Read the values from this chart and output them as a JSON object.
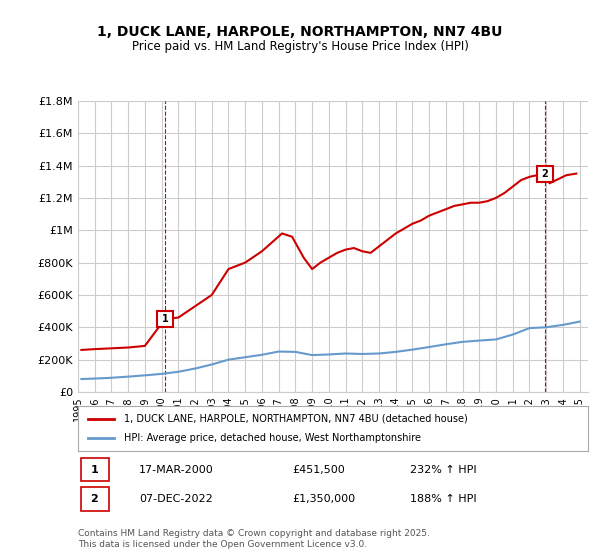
{
  "title": "1, DUCK LANE, HARPOLE, NORTHAMPTON, NN7 4BU",
  "subtitle": "Price paid vs. HM Land Registry's House Price Index (HPI)",
  "legend_label_red": "1, DUCK LANE, HARPOLE, NORTHAMPTON, NN7 4BU (detached house)",
  "legend_label_blue": "HPI: Average price, detached house, West Northamptonshire",
  "annotation1_label": "1",
  "annotation1_date": "17-MAR-2000",
  "annotation1_price": "£451,500",
  "annotation1_hpi": "232% ↑ HPI",
  "annotation2_label": "2",
  "annotation2_date": "07-DEC-2022",
  "annotation2_price": "£1,350,000",
  "annotation2_hpi": "188% ↑ HPI",
  "footer": "Contains HM Land Registry data © Crown copyright and database right 2025.\nThis data is licensed under the Open Government Licence v3.0.",
  "red_color": "#cc0000",
  "blue_color": "#6699cc",
  "ylim": [
    0,
    1800000
  ],
  "yticks": [
    0,
    200000,
    400000,
    600000,
    800000,
    1000000,
    1200000,
    1400000,
    1600000,
    1800000
  ],
  "ytick_labels": [
    "£0",
    "£200K",
    "£400K",
    "£600K",
    "£800K",
    "£1M",
    "£1.2M",
    "£1.4M",
    "£1.6M",
    "£1.8M"
  ],
  "xlim_start": 1995.0,
  "xlim_end": 2025.5,
  "grid_color": "#cccccc",
  "bg_color": "#ffffff",
  "red_x": [
    1995.2,
    1996.0,
    1997.0,
    1998.0,
    1999.0,
    2000.2,
    2001.0,
    2002.0,
    2003.0,
    2004.0,
    2005.0,
    2006.0,
    2007.2,
    2007.8,
    2008.5,
    2009.0,
    2009.5,
    2010.0,
    2010.5,
    2011.0,
    2011.5,
    2012.0,
    2012.5,
    2013.0,
    2013.5,
    2014.0,
    2014.5,
    2015.0,
    2015.5,
    2016.0,
    2016.5,
    2017.0,
    2017.5,
    2018.0,
    2018.5,
    2019.0,
    2019.5,
    2020.0,
    2020.5,
    2021.0,
    2021.5,
    2022.0,
    2022.9,
    2023.2,
    2023.8,
    2024.2,
    2024.8
  ],
  "red_y": [
    260000,
    265000,
    270000,
    275000,
    285000,
    451500,
    460000,
    530000,
    600000,
    760000,
    800000,
    870000,
    980000,
    960000,
    830000,
    760000,
    800000,
    830000,
    860000,
    880000,
    890000,
    870000,
    860000,
    900000,
    940000,
    980000,
    1010000,
    1040000,
    1060000,
    1090000,
    1110000,
    1130000,
    1150000,
    1160000,
    1170000,
    1170000,
    1180000,
    1200000,
    1230000,
    1270000,
    1310000,
    1330000,
    1350000,
    1290000,
    1320000,
    1340000,
    1350000
  ],
  "blue_x": [
    1995.2,
    1996.0,
    1997.0,
    1998.0,
    1999.0,
    2000.0,
    2001.0,
    2002.0,
    2003.0,
    2004.0,
    2005.0,
    2006.0,
    2007.0,
    2008.0,
    2009.0,
    2010.0,
    2011.0,
    2012.0,
    2013.0,
    2014.0,
    2015.0,
    2016.0,
    2017.0,
    2018.0,
    2019.0,
    2020.0,
    2021.0,
    2022.0,
    2023.0,
    2024.0,
    2025.0
  ],
  "blue_y": [
    80000,
    83000,
    88000,
    95000,
    103000,
    112000,
    125000,
    145000,
    170000,
    200000,
    215000,
    230000,
    250000,
    248000,
    228000,
    232000,
    238000,
    235000,
    238000,
    248000,
    262000,
    278000,
    295000,
    310000,
    318000,
    325000,
    355000,
    395000,
    400000,
    415000,
    435000
  ],
  "marker1_x": 2000.2,
  "marker1_y": 451500,
  "marker2_x": 2022.9,
  "marker2_y": 1350000
}
